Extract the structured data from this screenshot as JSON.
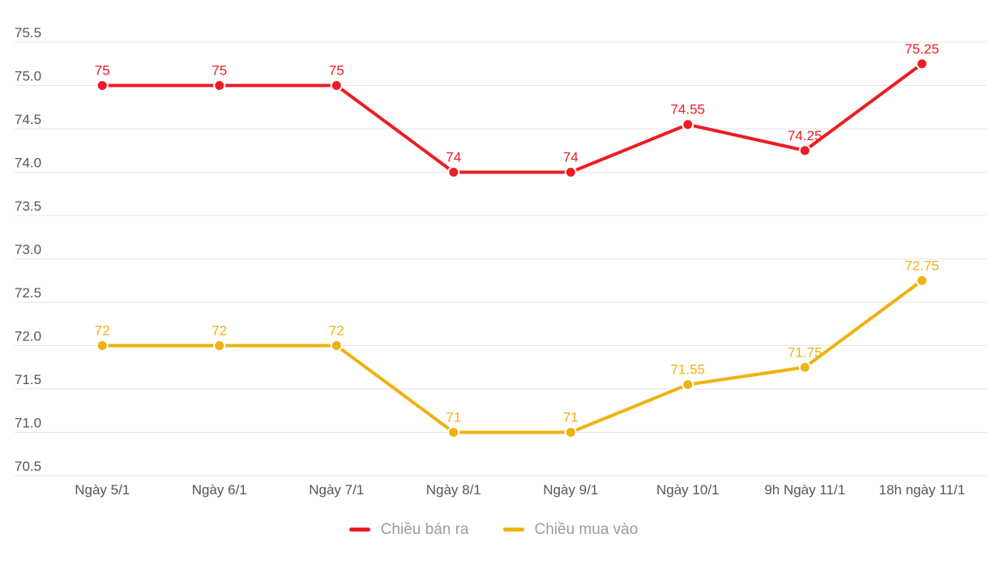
{
  "chart_data": {
    "type": "line",
    "categories": [
      "Ngày 5/1",
      "Ngày 6/1",
      "Ngày 7/1",
      "Ngày 8/1",
      "Ngày 9/1",
      "Ngày 10/1",
      "9h Ngày 11/1",
      "18h ngày 11/1"
    ],
    "series": [
      {
        "name": "Chiều bán ra",
        "color": "#ed1c24",
        "values": [
          75,
          75,
          75,
          74,
          74,
          74.55,
          74.25,
          75.25
        ],
        "labels": [
          "75",
          "75",
          "75",
          "74",
          "74",
          "74.55",
          "74.25",
          "75.25"
        ]
      },
      {
        "name": "Chiều mua vào",
        "color": "#eeb211",
        "values": [
          72,
          72,
          72,
          71,
          71,
          71.55,
          71.75,
          72.75
        ],
        "labels": [
          "72",
          "72",
          "72",
          "71",
          "71",
          "71.55",
          "71.75",
          "72.75"
        ]
      }
    ],
    "ylim": [
      70.5,
      75.5
    ],
    "ytick_step": 0.5,
    "ytick_labels": [
      "70.5",
      "71.0",
      "71.5",
      "72.0",
      "72.5",
      "73.0",
      "73.5",
      "74.0",
      "74.5",
      "75.0",
      "75.5"
    ],
    "grid": true,
    "legend_position": "bottom",
    "colors": {
      "background": "#ffffff",
      "grid": "#e4e4e4",
      "axis_text": "#55565a",
      "legend_text": "#9c9c9c",
      "marker_ring": "#ffffff"
    }
  }
}
